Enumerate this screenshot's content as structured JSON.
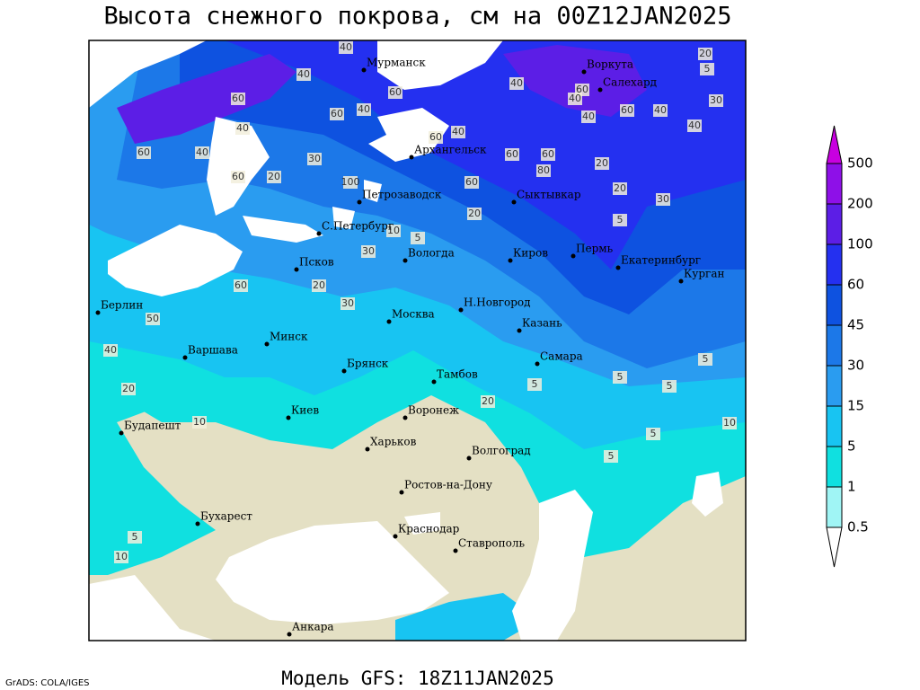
{
  "header": {
    "title": "Высота снежного покрова, см на 00Z12JAN2025"
  },
  "footer": {
    "model": "Модель GFS: 18Z11JAN2025",
    "credit": "GrADS: COLA/IGES"
  },
  "legend": {
    "levels": [
      "0.5",
      "1",
      "5",
      "15",
      "30",
      "45",
      "60",
      "100",
      "200",
      "500"
    ],
    "colors": [
      "#ffffff",
      "#a0f5f5",
      "#10e0e0",
      "#18c4f2",
      "#2a9cf0",
      "#1c78e8",
      "#0e52e0",
      "#2430f0",
      "#5c1ee6",
      "#8e10e8",
      "#c800e0"
    ]
  },
  "cities": [
    "Мурманск",
    "Воркута",
    "Салехард",
    "Архангельск",
    "Сыктывкар",
    "Петрозаводск",
    "С.Петербург",
    "Вологда",
    "Киров",
    "Пермь",
    "Екатеринбург",
    "Курган",
    "Псков",
    "Н.Новгород",
    "Казань",
    "Москва",
    "Берлин",
    "Варшава",
    "Минск",
    "Брянск",
    "Тамбов",
    "Самара",
    "Киев",
    "Воронеж",
    "Харьков",
    "Будапешт",
    "Волгоград",
    "Ростов-на-Дону",
    "Бухарест",
    "Краснодар",
    "Ставрополь",
    "Анкара"
  ],
  "contour_labels": [
    "60",
    "40",
    "60",
    "40",
    "60",
    "40",
    "60",
    "40",
    "40",
    "60",
    "60",
    "20",
    "30",
    "100",
    "40",
    "60",
    "80",
    "60",
    "60",
    "40",
    "60",
    "40",
    "40",
    "60",
    "40",
    "20",
    "20",
    "30",
    "40",
    "30",
    "20",
    "5",
    "5",
    "20",
    "5",
    "10",
    "30",
    "20",
    "30",
    "60",
    "50",
    "40",
    "20",
    "10",
    "20",
    "5",
    "5",
    "5",
    "5",
    "10",
    "5",
    "5",
    "5",
    "10"
  ]
}
